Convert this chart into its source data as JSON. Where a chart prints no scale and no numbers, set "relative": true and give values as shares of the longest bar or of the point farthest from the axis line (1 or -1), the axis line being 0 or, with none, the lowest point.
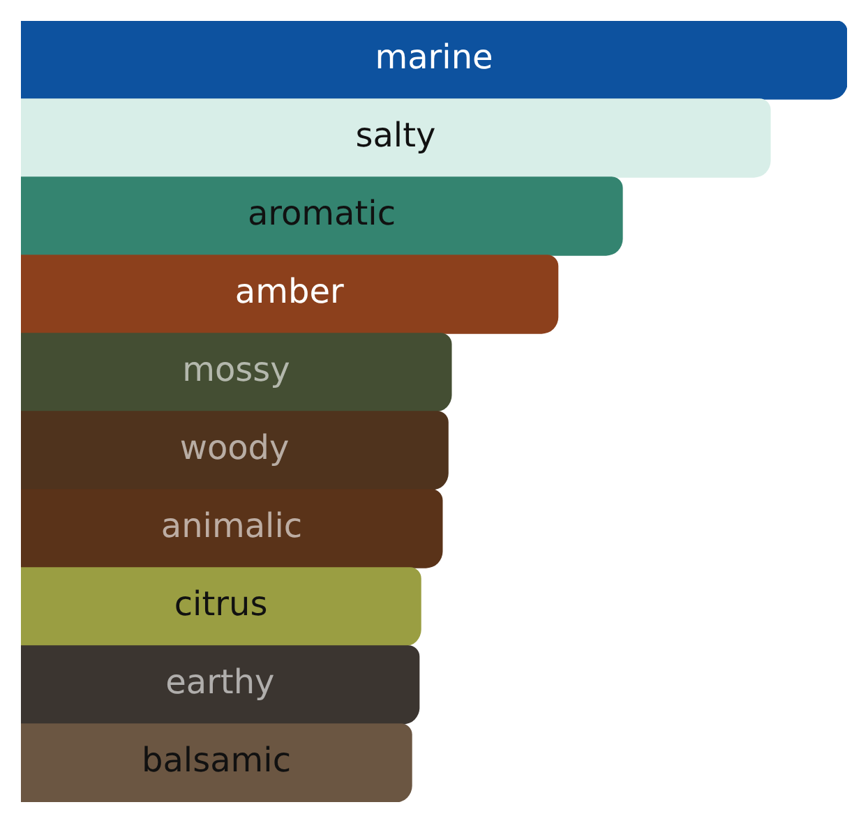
{
  "chart_data": {
    "type": "bar",
    "orientation": "horizontal",
    "relative": true,
    "categories": [
      "marine",
      "salty",
      "aromatic",
      "amber",
      "mossy",
      "woody",
      "animalic",
      "citrus",
      "earthy",
      "balsamic"
    ],
    "values": [
      1,
      0.907,
      0.728,
      0.65,
      0.521,
      0.517,
      0.51,
      0.484,
      0.482,
      0.473
    ],
    "colors": [
      "#0d529f",
      "#d8eee8",
      "#348470",
      "#8c401c",
      "#444e33",
      "#4f331d",
      "#5a3319",
      "#9a9e42",
      "#3b3530",
      "#6b5642"
    ]
  }
}
